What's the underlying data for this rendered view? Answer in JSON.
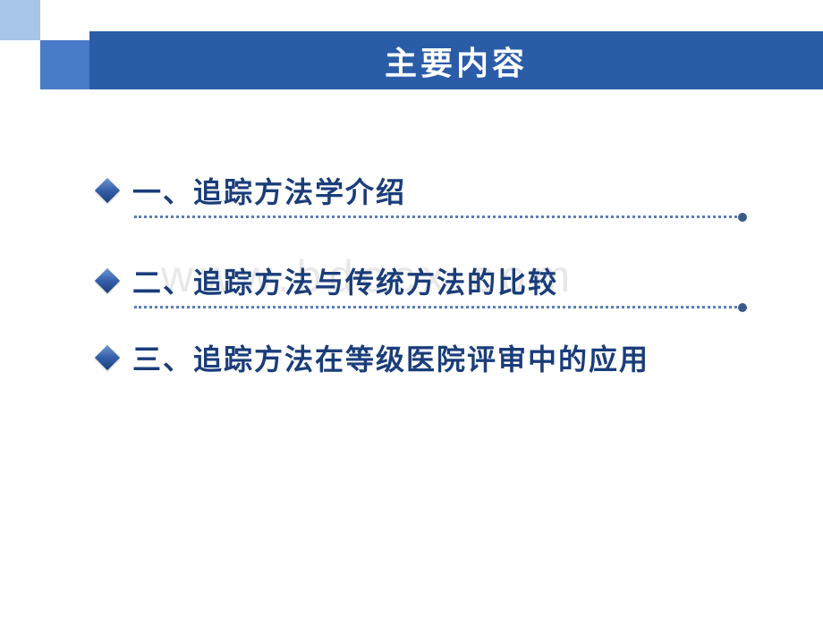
{
  "slide": {
    "title": "主要内容",
    "watermark": "www.bdocx.com",
    "items": [
      {
        "label": "一、追踪方法学介绍",
        "hasLine": true
      },
      {
        "label": "二、追踪方法与传统方法的比较",
        "hasLine": true
      },
      {
        "label": "三、追踪方法在等级医院评审中的应用",
        "hasLine": false
      }
    ],
    "colors": {
      "titleBanner": "#2a5ca8",
      "cornerLight": "#a7c5e8",
      "cornerDark": "#4a7bc8",
      "itemText": "#1a3d7a",
      "dottedLine": "#5a7db8",
      "background": "#ffffff"
    },
    "typography": {
      "titleFontSize": 36,
      "itemFontSize": 32,
      "fontFamily": "Microsoft YaHei"
    }
  }
}
